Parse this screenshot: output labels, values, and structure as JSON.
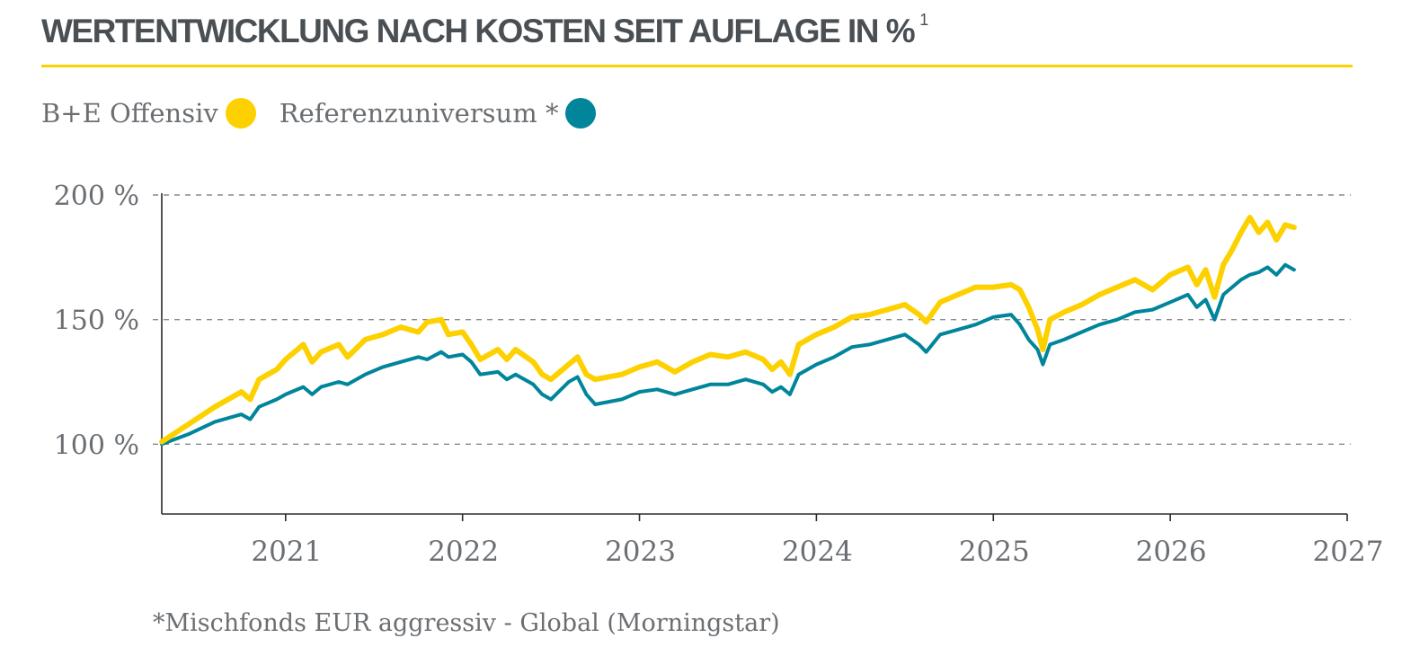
{
  "title": "WERTENTWICKLUNG NACH KOSTEN SEIT AUFLAGE IN %",
  "title_footnote_mark": "1",
  "footnote": "*Mischfonds EUR aggressiv - Global (Morningstar)",
  "colors": {
    "title": "#4a4f53",
    "rule": "#fdd100",
    "fund": "#fdd100",
    "reference": "#00859a",
    "axis": "#2b2b2b",
    "grid": "#8a8a8a",
    "text": "#6b6f73"
  },
  "chart_data": {
    "type": "line",
    "title": "WERTENTWICKLUNG NACH KOSTEN SEIT AUFLAGE IN %",
    "xlabel": "",
    "ylabel": "",
    "xlim": [
      2020.3,
      2027.0
    ],
    "ylim": [
      72,
      200
    ],
    "y_ticks": [
      {
        "value": 100,
        "label": "100 %"
      },
      {
        "value": 150,
        "label": "150 %"
      },
      {
        "value": 200,
        "label": "200 %"
      }
    ],
    "x_ticks": [
      {
        "value": 2021,
        "label": "2021"
      },
      {
        "value": 2022,
        "label": "2022"
      },
      {
        "value": 2023,
        "label": "2023"
      },
      {
        "value": 2024,
        "label": "2024"
      },
      {
        "value": 2025,
        "label": "2025"
      },
      {
        "value": 2026,
        "label": "2026"
      },
      {
        "value": 2027,
        "label": "2027"
      }
    ],
    "grid": "horizontal dashed",
    "legend_position": "top-left",
    "series": [
      {
        "name": "B+E Offensiv",
        "color": "#fdd100",
        "x": [
          2020.3,
          2020.45,
          2020.6,
          2020.75,
          2020.8,
          2020.85,
          2020.95,
          2021.0,
          2021.1,
          2021.15,
          2021.2,
          2021.3,
          2021.35,
          2021.45,
          2021.55,
          2021.65,
          2021.75,
          2021.8,
          2021.88,
          2021.92,
          2022.0,
          2022.05,
          2022.1,
          2022.2,
          2022.25,
          2022.3,
          2022.4,
          2022.45,
          2022.5,
          2022.6,
          2022.65,
          2022.7,
          2022.75,
          2022.9,
          2023.0,
          2023.1,
          2023.2,
          2023.3,
          2023.4,
          2023.5,
          2023.6,
          2023.7,
          2023.75,
          2023.8,
          2023.85,
          2023.9,
          2024.0,
          2024.1,
          2024.2,
          2024.3,
          2024.4,
          2024.5,
          2024.58,
          2024.62,
          2024.7,
          2024.8,
          2024.9,
          2025.0,
          2025.1,
          2025.15,
          2025.2,
          2025.25,
          2025.28,
          2025.32,
          2025.4,
          2025.5,
          2025.6,
          2025.7,
          2025.8,
          2025.9,
          2026.0,
          2026.1,
          2026.15,
          2026.2,
          2026.25,
          2026.3,
          2026.35,
          2026.4,
          2026.45,
          2026.5,
          2026.55,
          2026.6,
          2026.65,
          2026.7
        ],
        "values": [
          101,
          108,
          115,
          121,
          118,
          126,
          130,
          134,
          140,
          133,
          137,
          140,
          135,
          142,
          144,
          147,
          145,
          149,
          150,
          144,
          145,
          140,
          134,
          138,
          134,
          138,
          133,
          128,
          126,
          132,
          135,
          128,
          126,
          128,
          131,
          133,
          129,
          133,
          136,
          135,
          137,
          134,
          130,
          133,
          128,
          140,
          144,
          147,
          151,
          152,
          154,
          156,
          152,
          149,
          157,
          160,
          163,
          163,
          164,
          162,
          155,
          146,
          138,
          150,
          153,
          156,
          160,
          163,
          166,
          162,
          168,
          171,
          164,
          170,
          159,
          172,
          178,
          185,
          191,
          185,
          189,
          182,
          188,
          187
        ]
      },
      {
        "name": "Referenzuniversum *",
        "color": "#00859a",
        "x": [
          2020.3,
          2020.45,
          2020.6,
          2020.75,
          2020.8,
          2020.85,
          2020.95,
          2021.0,
          2021.1,
          2021.15,
          2021.2,
          2021.3,
          2021.35,
          2021.45,
          2021.55,
          2021.65,
          2021.75,
          2021.8,
          2021.88,
          2021.92,
          2022.0,
          2022.05,
          2022.1,
          2022.2,
          2022.25,
          2022.3,
          2022.4,
          2022.45,
          2022.5,
          2022.6,
          2022.65,
          2022.7,
          2022.75,
          2022.9,
          2023.0,
          2023.1,
          2023.2,
          2023.3,
          2023.4,
          2023.5,
          2023.6,
          2023.7,
          2023.75,
          2023.8,
          2023.85,
          2023.9,
          2024.0,
          2024.1,
          2024.2,
          2024.3,
          2024.4,
          2024.5,
          2024.58,
          2024.62,
          2024.7,
          2024.8,
          2024.9,
          2025.0,
          2025.1,
          2025.15,
          2025.2,
          2025.25,
          2025.28,
          2025.32,
          2025.4,
          2025.5,
          2025.6,
          2025.7,
          2025.8,
          2025.9,
          2026.0,
          2026.1,
          2026.15,
          2026.2,
          2026.25,
          2026.3,
          2026.35,
          2026.4,
          2026.45,
          2026.5,
          2026.55,
          2026.6,
          2026.65,
          2026.7
        ],
        "values": [
          100,
          104,
          109,
          112,
          110,
          115,
          118,
          120,
          123,
          120,
          123,
          125,
          124,
          128,
          131,
          133,
          135,
          134,
          137,
          135,
          136,
          133,
          128,
          129,
          126,
          128,
          124,
          120,
          118,
          125,
          127,
          120,
          116,
          118,
          121,
          122,
          120,
          122,
          124,
          124,
          126,
          124,
          121,
          123,
          120,
          128,
          132,
          135,
          139,
          140,
          142,
          144,
          140,
          137,
          144,
          146,
          148,
          151,
          152,
          148,
          142,
          138,
          132,
          140,
          142,
          145,
          148,
          150,
          153,
          154,
          157,
          160,
          155,
          158,
          150,
          160,
          163,
          166,
          168,
          169,
          171,
          168,
          172,
          170
        ]
      }
    ]
  }
}
